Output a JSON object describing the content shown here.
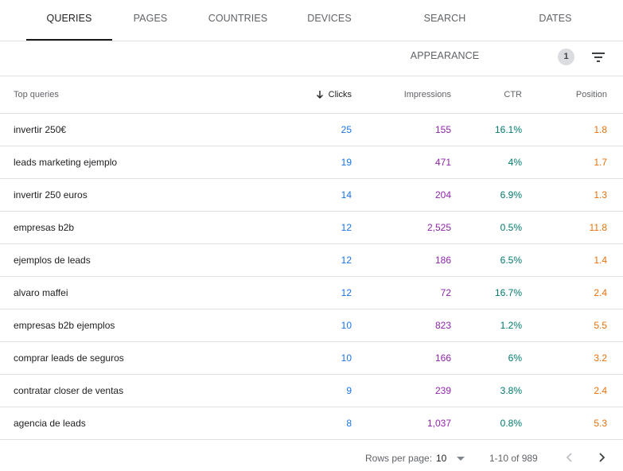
{
  "tabs": [
    {
      "label": "QUERIES",
      "active": true
    },
    {
      "label": "PAGES",
      "active": false
    },
    {
      "label": "COUNTRIES",
      "active": false
    },
    {
      "label": "DEVICES",
      "active": false
    },
    {
      "label": "SEARCH APPEARANCE",
      "active": false
    },
    {
      "label": "DATES",
      "active": false
    }
  ],
  "toolbar": {
    "filter_count": "1",
    "filter_icon": "filter-list-icon"
  },
  "table": {
    "headers": {
      "query": "Top queries",
      "clicks": "Clicks",
      "impressions": "Impressions",
      "ctr": "CTR",
      "position": "Position"
    },
    "sort_icon": "arrow-down-icon",
    "rows": [
      {
        "query": "invertir 250€",
        "clicks": "25",
        "impressions": "155",
        "ctr": "16.1%",
        "position": "1.8"
      },
      {
        "query": "leads marketing ejemplo",
        "clicks": "19",
        "impressions": "471",
        "ctr": "4%",
        "position": "1.7"
      },
      {
        "query": "invertir 250 euros",
        "clicks": "14",
        "impressions": "204",
        "ctr": "6.9%",
        "position": "1.3"
      },
      {
        "query": "empresas b2b",
        "clicks": "12",
        "impressions": "2,525",
        "ctr": "0.5%",
        "position": "11.8"
      },
      {
        "query": "ejemplos de leads",
        "clicks": "12",
        "impressions": "186",
        "ctr": "6.5%",
        "position": "1.4"
      },
      {
        "query": "alvaro maffei",
        "clicks": "12",
        "impressions": "72",
        "ctr": "16.7%",
        "position": "2.4"
      },
      {
        "query": "empresas b2b ejemplos",
        "clicks": "10",
        "impressions": "823",
        "ctr": "1.2%",
        "position": "5.5"
      },
      {
        "query": "comprar leads de seguros",
        "clicks": "10",
        "impressions": "166",
        "ctr": "6%",
        "position": "3.2"
      },
      {
        "query": "contratar closer de ventas",
        "clicks": "9",
        "impressions": "239",
        "ctr": "3.8%",
        "position": "2.4"
      },
      {
        "query": "agencia de leads",
        "clicks": "8",
        "impressions": "1,037",
        "ctr": "0.8%",
        "position": "5.3"
      }
    ]
  },
  "footer": {
    "rows_per_page_label": "Rows per page:",
    "rows_per_page_value": "10",
    "range": "1-10 of 989",
    "prev_icon": "chevron-left-icon",
    "next_icon": "chevron-right-icon"
  },
  "colors": {
    "clicks": "#1a73e8",
    "impressions": "#8e24aa",
    "ctr": "#00796b",
    "position": "#e8710a"
  }
}
